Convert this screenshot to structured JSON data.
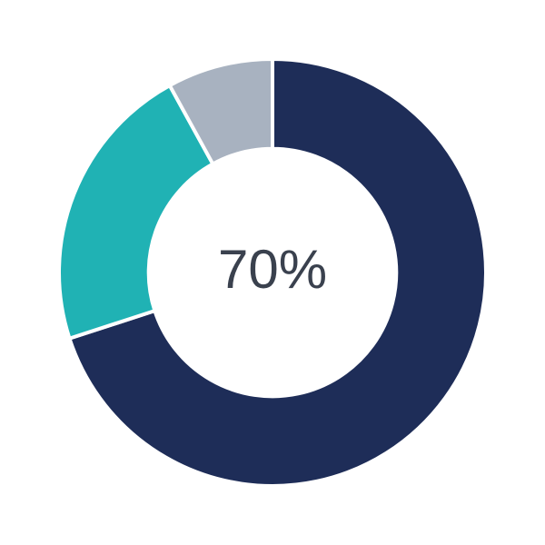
{
  "chart_data": {
    "type": "pie",
    "variant": "donut",
    "center_label": "70%",
    "segments": [
      {
        "name": "primary",
        "value": 70,
        "color": "#1E2D58"
      },
      {
        "name": "secondary",
        "value": 22,
        "color": "#20B2B4"
      },
      {
        "name": "tertiary",
        "value": 8,
        "color": "#A8B2C0"
      }
    ],
    "total": 100,
    "start_angle_deg": 0,
    "direction": "clockwise",
    "inner_radius_ratio": 0.58,
    "separator_color": "#FFFFFF",
    "legend_position": "none",
    "grid": false
  },
  "style": {
    "background_color": "#FFFFFF",
    "center_label_color": "#3A414E"
  }
}
